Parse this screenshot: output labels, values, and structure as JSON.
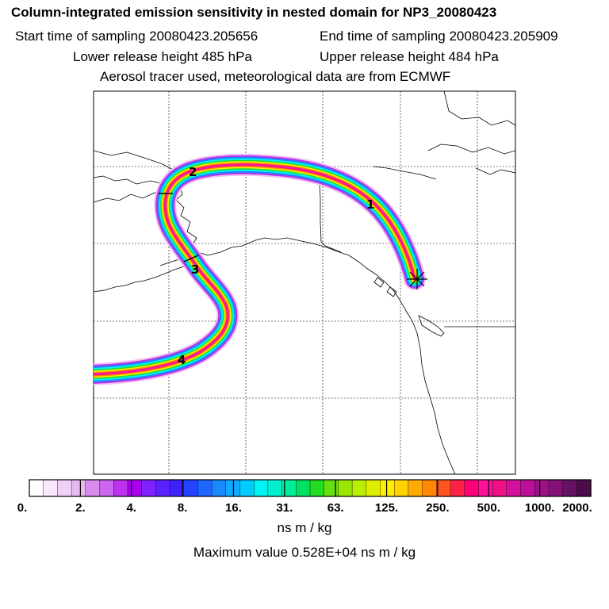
{
  "header": {
    "title": "Column-integrated emission sensitivity in nested domain for NP3_20080423",
    "start_label": "Start time of sampling 20080423.205656",
    "end_label": "End time of sampling 20080423.205909",
    "lower_label": "Lower release height  485 hPa",
    "upper_label": "Upper release height  484 hPa",
    "tracer_label": "Aerosol tracer used, meteorological data are from ECMWF"
  },
  "map": {
    "day_markers": [
      "1",
      "2",
      "3",
      "4"
    ],
    "release_marker_icon": "asterisk-star-icon"
  },
  "colorbar": {
    "labels": [
      "0.",
      "2.",
      "4.",
      "8.",
      "16.",
      "31.",
      "63.",
      "125.",
      "250.",
      "500.",
      "1000.",
      "2000."
    ],
    "colors": [
      "#ffffff",
      "#f8e8fa",
      "#f0d2f6",
      "#e8b8f2",
      "#d98cee",
      "#cc66ee",
      "#bb33ee",
      "#aa00ee",
      "#7f22ff",
      "#5a22ff",
      "#3b22ff",
      "#2244ff",
      "#1f66ff",
      "#1a88ff",
      "#11aaff",
      "#00ccff",
      "#00f2f2",
      "#00eed0",
      "#00ee99",
      "#00e060",
      "#22dd22",
      "#66e011",
      "#99e600",
      "#bbee00",
      "#ddee00",
      "#ffee00",
      "#ffd200",
      "#ffaa00",
      "#ff8800",
      "#ff5522",
      "#ff2244",
      "#ff0077",
      "#ff1199",
      "#ee1188",
      "#d4119d",
      "#bb1199",
      "#9e1188",
      "#851177",
      "#661166",
      "#4a0d4a"
    ],
    "units": "ns m / kg",
    "maximum": "Maximum value  0.528E+04 ns m / kg"
  }
}
